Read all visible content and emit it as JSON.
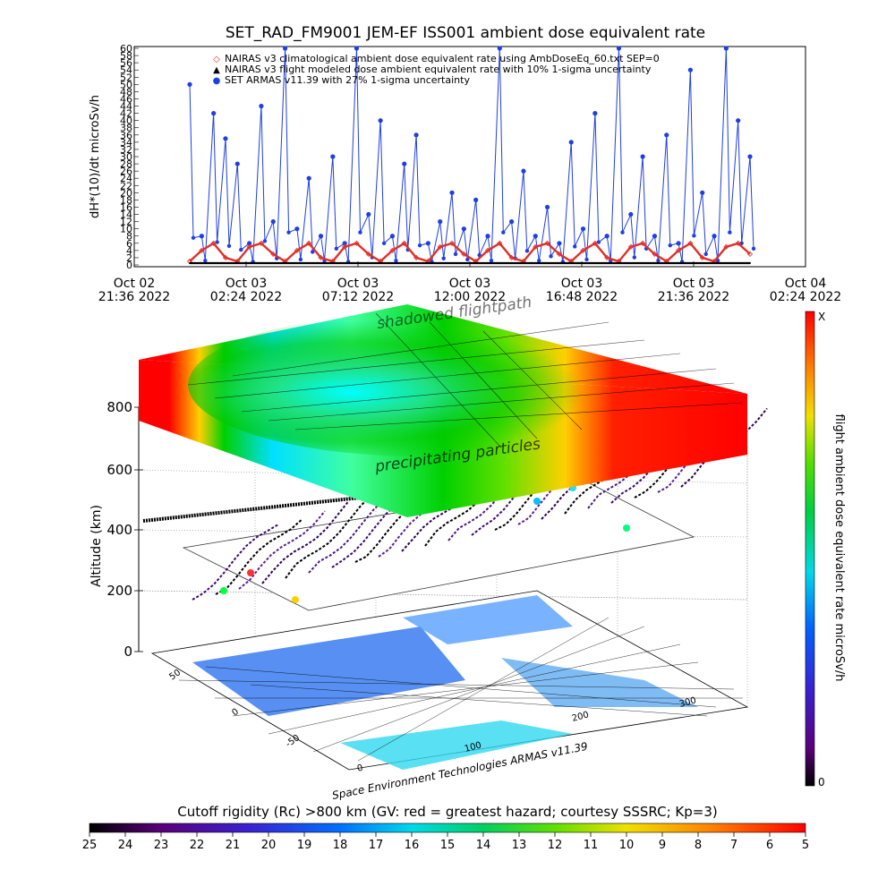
{
  "header": {
    "title": "SET_RAD_FM9001  JEM-EF ISS001 ambient dose equivalent rate"
  },
  "timeseries": {
    "ylabel": "dH*(10)/dt microSv/h",
    "y_ticks": [
      0,
      2,
      4,
      6,
      8,
      10,
      12,
      14,
      16,
      18,
      20,
      22,
      24,
      26,
      28,
      30,
      32,
      34,
      36,
      38,
      40,
      42,
      44,
      46,
      48,
      50,
      52,
      54,
      56,
      58,
      60
    ],
    "x_ticks": [
      {
        "line1": "Oct 02",
        "line2": "21:36  2022"
      },
      {
        "line1": "Oct 03",
        "line2": "02:24  2022"
      },
      {
        "line1": "Oct 03",
        "line2": "07:12  2022"
      },
      {
        "line1": "Oct 03",
        "line2": "12:00  2022"
      },
      {
        "line1": "Oct 03",
        "line2": "16:48  2022"
      },
      {
        "line1": "Oct 03",
        "line2": "21:36  2022"
      },
      {
        "line1": "Oct 04",
        "line2": "02:24  2022"
      }
    ],
    "legend": [
      {
        "symbol": "◇",
        "color": "#e0302a",
        "text": "NAIRAS v3 climatological ambient dose equivalent rate using AmbDoseEq_60.txt SEP=0"
      },
      {
        "symbol": "▲",
        "color": "#000000",
        "text": "NAIRAS v3 flight modeled dose ambient equivalent rate with 10% 1-sigma uncertainty"
      },
      {
        "symbol": "●",
        "color": "#1f3fe0",
        "text": "SET ARMAS v11.39 with 27% 1-sigma uncertainty"
      }
    ]
  },
  "scene3d": {
    "altitude_label": "Altitude (km)",
    "altitude_ticks": [
      "0",
      "200",
      "400",
      "600",
      "800"
    ],
    "lat_ticks": [
      "50",
      "0",
      "-50"
    ],
    "lon_ticks": [
      "0",
      "100",
      "200",
      "300"
    ],
    "upper_label": "shadowed flightpath",
    "lower_label": "precipitating particles",
    "credit": "Space Environment Technologies ARMAS v11.39"
  },
  "right_colorbar": {
    "title": "flight ambient dose equivalent rate microSv/h",
    "top_label": "X",
    "bottom_label": "0"
  },
  "bottom_colorbar": {
    "title": "Cutoff rigidity (Rc) >800 km (GV: red = greatest hazard; courtesy SSSRC; Kp=3)",
    "ticks": [
      "25",
      "24",
      "23",
      "22",
      "21",
      "20",
      "19",
      "18",
      "17",
      "16",
      "15",
      "14",
      "13",
      "12",
      "11",
      "10",
      "9",
      "8",
      "7",
      "6",
      "5"
    ]
  },
  "chart_data": {
    "type": "scatter",
    "title": "SET_RAD_FM9001  JEM-EF ISS001 ambient dose equivalent rate",
    "ylabel": "dH*(10)/dt microSv/h",
    "ylim": [
      0,
      60
    ],
    "x": [
      "2022-10-03 00:00",
      "2022-10-03 00:30",
      "2022-10-03 01:00",
      "2022-10-03 01:30",
      "2022-10-03 02:00",
      "2022-10-03 02:30",
      "2022-10-03 03:00",
      "2022-10-03 03:30",
      "2022-10-03 04:00",
      "2022-10-03 04:30",
      "2022-10-03 05:00",
      "2022-10-03 05:30",
      "2022-10-03 06:00",
      "2022-10-03 06:30",
      "2022-10-03 07:00",
      "2022-10-03 07:30",
      "2022-10-03 08:00",
      "2022-10-03 08:30",
      "2022-10-03 09:00",
      "2022-10-03 09:30",
      "2022-10-03 10:00",
      "2022-10-03 10:30",
      "2022-10-03 11:00",
      "2022-10-03 11:30",
      "2022-10-03 12:00",
      "2022-10-03 12:30",
      "2022-10-03 13:00",
      "2022-10-03 13:30",
      "2022-10-03 14:00",
      "2022-10-03 14:30",
      "2022-10-03 15:00",
      "2022-10-03 15:30",
      "2022-10-03 16:00",
      "2022-10-03 16:30",
      "2022-10-03 17:00",
      "2022-10-03 17:30",
      "2022-10-03 18:00",
      "2022-10-03 18:30",
      "2022-10-03 19:00",
      "2022-10-03 19:30",
      "2022-10-03 20:00",
      "2022-10-03 20:30",
      "2022-10-03 21:00",
      "2022-10-03 21:30",
      "2022-10-03 22:00",
      "2022-10-03 22:30",
      "2022-10-03 23:00",
      "2022-10-03 23:30"
    ],
    "series": [
      {
        "name": "SET ARMAS v11.39 with 27% 1-sigma uncertainty",
        "values": [
          50,
          8,
          42,
          35,
          28,
          6,
          44,
          12,
          60,
          10,
          24,
          8,
          30,
          6,
          60,
          14,
          40,
          8,
          28,
          36,
          6,
          12,
          20,
          10,
          18,
          8,
          60,
          12,
          26,
          8,
          16,
          6,
          34,
          10,
          42,
          8,
          60,
          14,
          30,
          8,
          36,
          6,
          54,
          20,
          8,
          60,
          40,
          30
        ]
      },
      {
        "name": "NAIRAS v3 climatological ambient dose equivalent rate using AmbDoseEq_60.txt SEP=0",
        "values": [
          1,
          4,
          6,
          2,
          1,
          5,
          6,
          3,
          1,
          4,
          6,
          2,
          1,
          5,
          6,
          3,
          1,
          4,
          6,
          2,
          1,
          5,
          6,
          3,
          1,
          4,
          6,
          2,
          1,
          5,
          6,
          3,
          1,
          4,
          6,
          2,
          1,
          5,
          6,
          3,
          1,
          4,
          6,
          2,
          1,
          5,
          6,
          3
        ]
      },
      {
        "name": "NAIRAS v3 flight modeled dose ambient equivalent rate with 10% 1-sigma uncertainty",
        "values": [
          0.5,
          0.5,
          0.5,
          0.5,
          0.5,
          0.5,
          0.5,
          0.5,
          0.5,
          0.5,
          0.5,
          0.5,
          0.5,
          0.5,
          0.5,
          0.5,
          0.5,
          0.5,
          0.5,
          0.5,
          0.5,
          0.5,
          0.5,
          0.5,
          0.5,
          0.5,
          0.5,
          0.5,
          0.5,
          0.5,
          0.5,
          0.5,
          0.5,
          0.5,
          0.5,
          0.5,
          0.5,
          0.5,
          0.5,
          0.5,
          0.5,
          0.5,
          0.5,
          0.5,
          0.5,
          0.5,
          0.5,
          0.5
        ]
      }
    ]
  }
}
